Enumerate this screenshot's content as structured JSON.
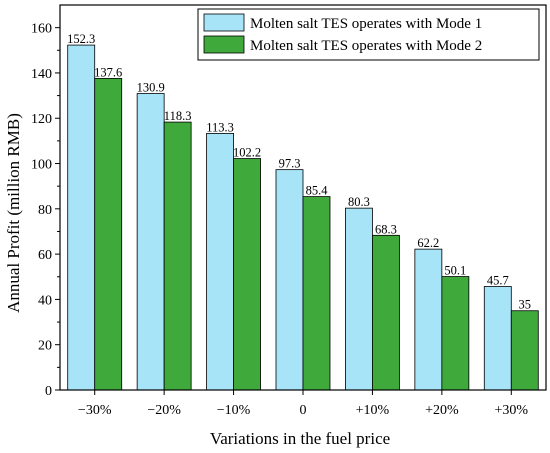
{
  "chart_data": {
    "type": "bar",
    "categories": [
      "−30%",
      "−20%",
      "−10%",
      "0",
      "+10%",
      "+20%",
      "+30%"
    ],
    "series": [
      {
        "name": "Molten salt TES operates with Mode 1",
        "values": [
          152.3,
          130.9,
          113.3,
          97.3,
          80.3,
          62.2,
          45.7
        ],
        "labels": [
          "152.3",
          "130.9",
          "113.3",
          "97.3",
          "80.3",
          "62.2",
          "45.7"
        ],
        "color": "#a8e4f8"
      },
      {
        "name": "Molten salt TES operates with Mode 2",
        "values": [
          137.6,
          118.3,
          102.2,
          85.4,
          68.3,
          50.1,
          35
        ],
        "labels": [
          "137.6",
          "118.3",
          "102.2",
          "85.4",
          "68.3",
          "50.1",
          "35"
        ],
        "color": "#3fa93c"
      }
    ],
    "xlabel": "Variations in the fuel price",
    "ylabel": "Annual Profit (million RMB)",
    "ylim": [
      0,
      170
    ],
    "yticks": [
      0,
      20,
      40,
      60,
      80,
      100,
      120,
      140,
      160
    ],
    "grid": false,
    "legend_position": "top-right"
  }
}
